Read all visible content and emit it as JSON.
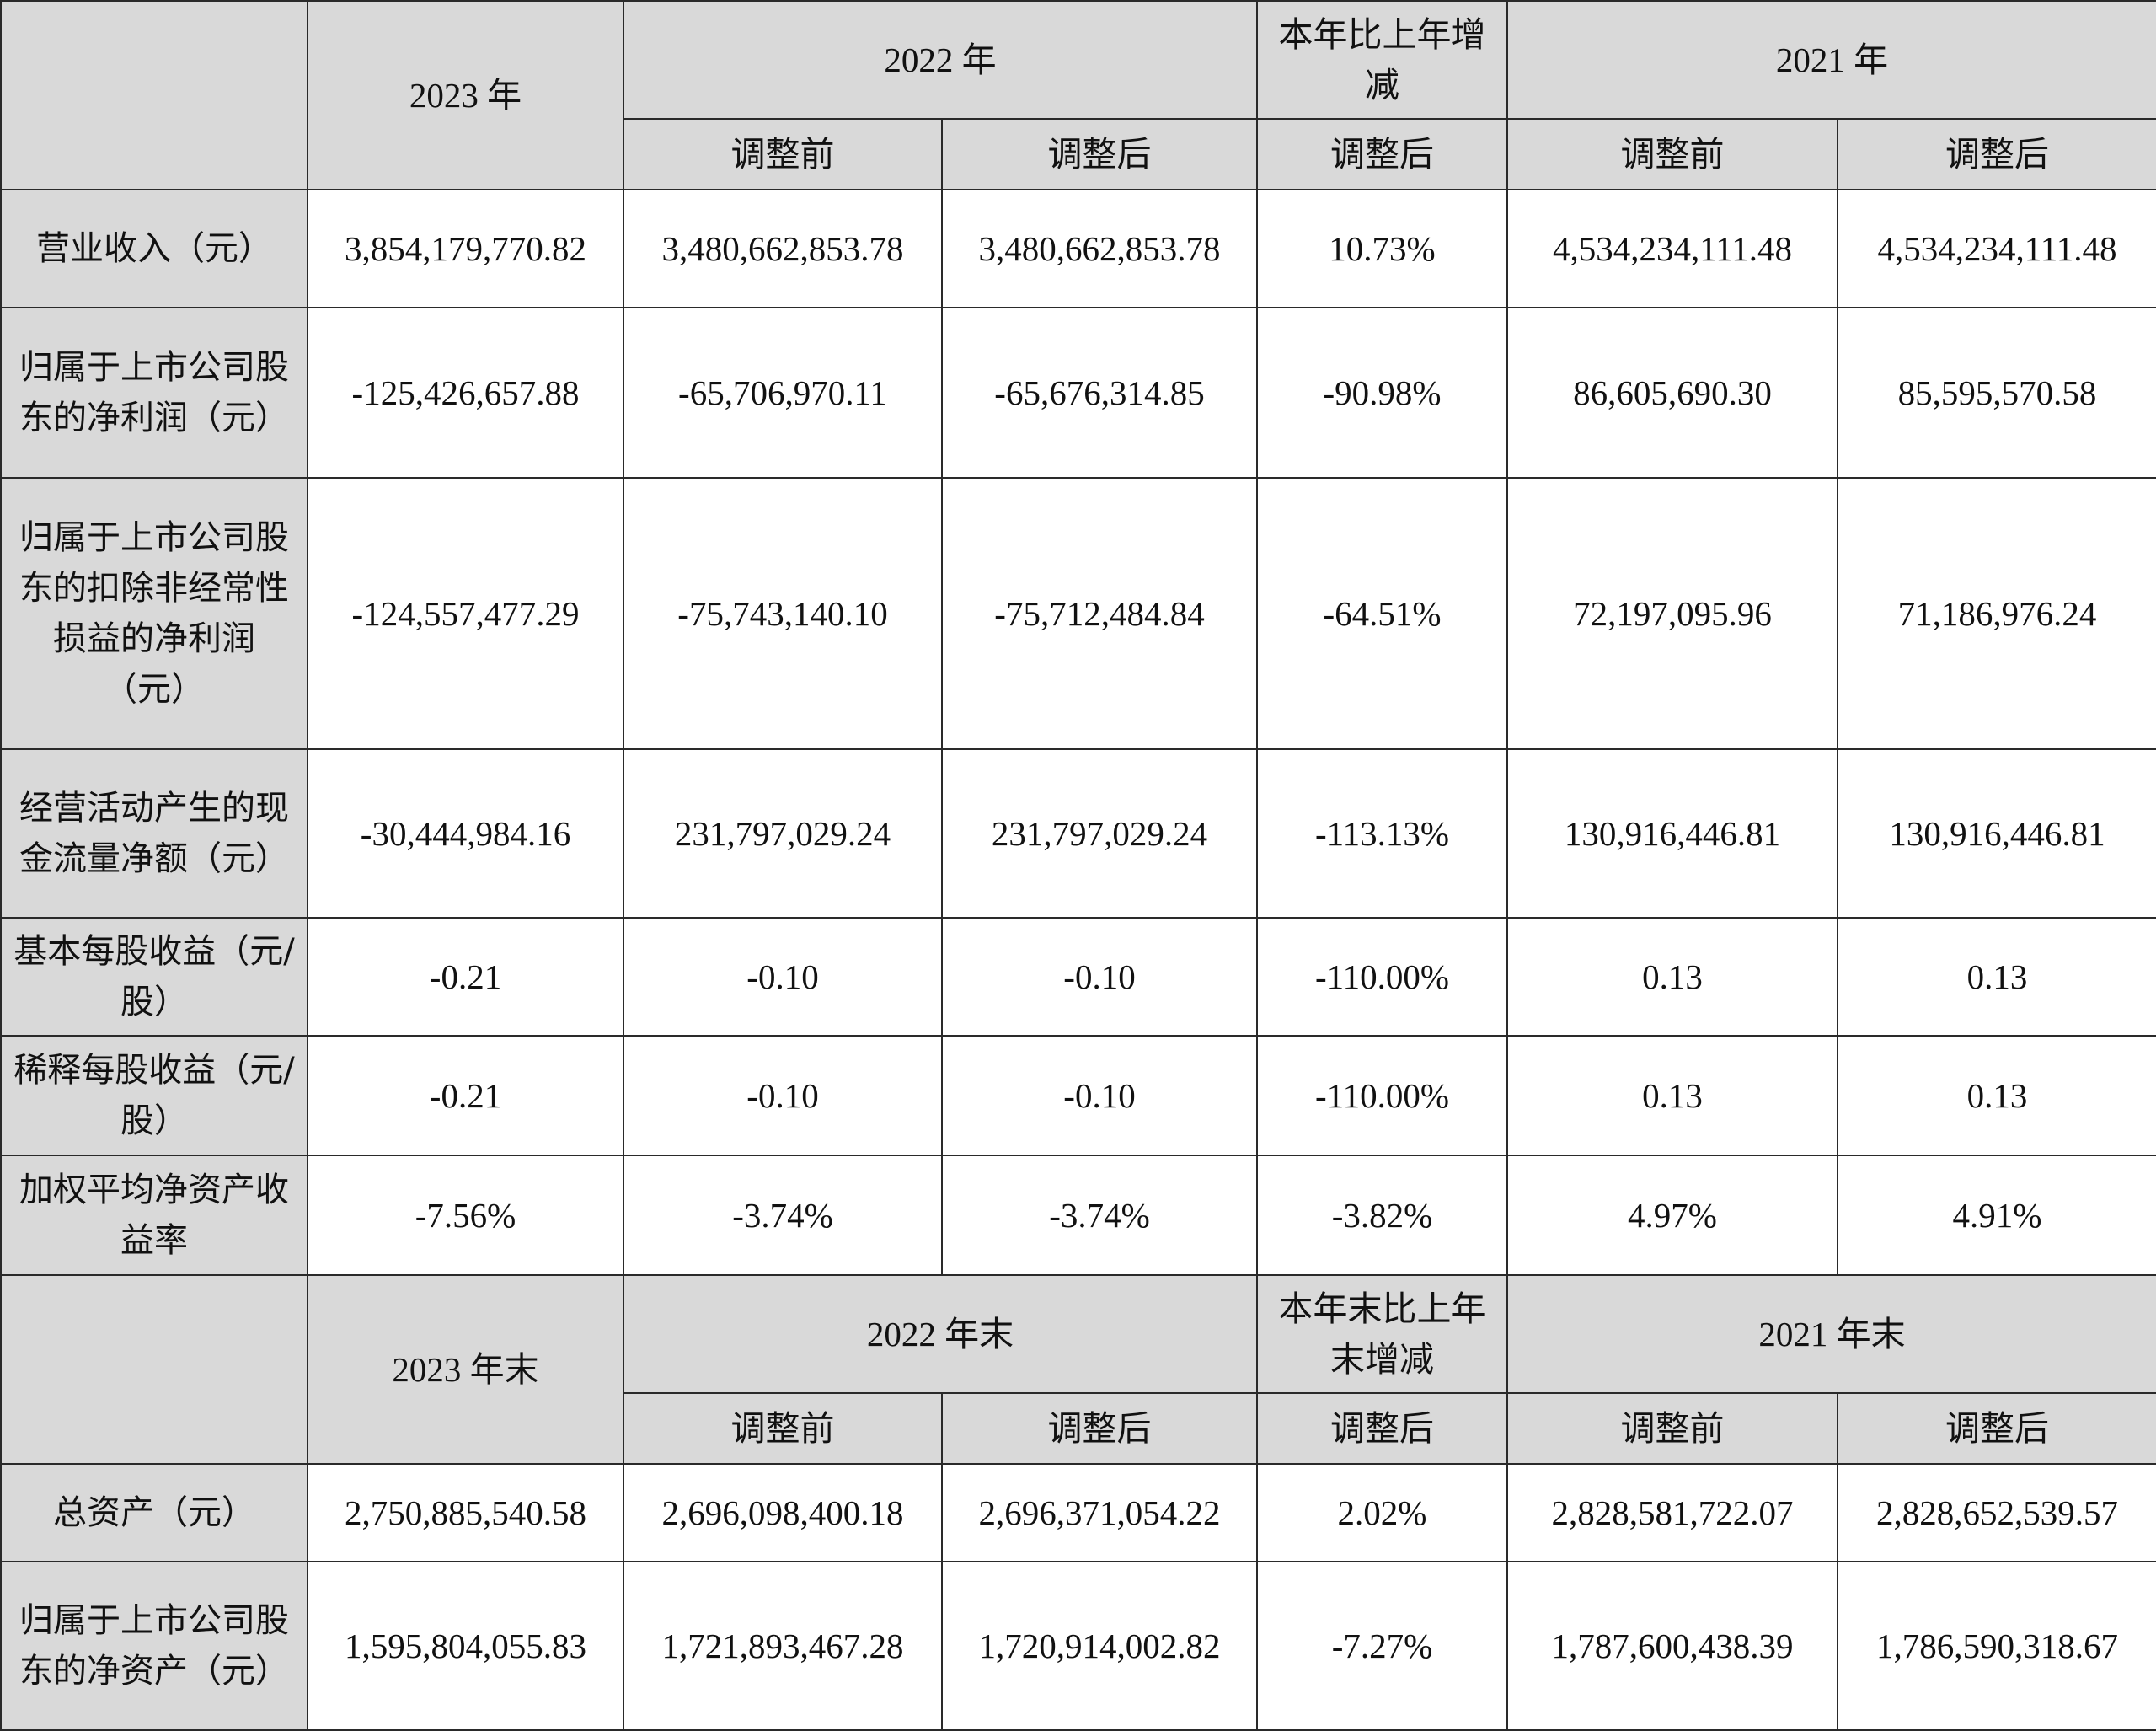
{
  "section1": {
    "header": {
      "year_current": "2023 年",
      "year_prior": "2022 年",
      "change": "本年比上年增减",
      "year_prior2": "2021 年",
      "sub": {
        "prior_before": "调整前",
        "prior_after": "调整后",
        "change_after": "调整后",
        "prior2_before": "调整前",
        "prior2_after": "调整后"
      }
    },
    "rows": [
      {
        "label": "营业收入（元）",
        "values": [
          "3,854,179,770.82",
          "3,480,662,853.78",
          "3,480,662,853.78",
          "10.73%",
          "4,534,234,111.48",
          "4,534,234,111.48"
        ]
      },
      {
        "label": "归属于上市公司股东的净利润（元）",
        "values": [
          "-125,426,657.88",
          "-65,706,970.11",
          "-65,676,314.85",
          "-90.98%",
          "86,605,690.30",
          "85,595,570.58"
        ]
      },
      {
        "label": "归属于上市公司股东的扣除非经常性损益的净利润（元）",
        "values": [
          "-124,557,477.29",
          "-75,743,140.10",
          "-75,712,484.84",
          "-64.51%",
          "72,197,095.96",
          "71,186,976.24"
        ]
      },
      {
        "label": "经营活动产生的现金流量净额（元）",
        "values": [
          "-30,444,984.16",
          "231,797,029.24",
          "231,797,029.24",
          "-113.13%",
          "130,916,446.81",
          "130,916,446.81"
        ]
      },
      {
        "label": "基本每股收益（元/股）",
        "values": [
          "-0.21",
          "-0.10",
          "-0.10",
          "-110.00%",
          "0.13",
          "0.13"
        ]
      },
      {
        "label": "稀释每股收益（元/股）",
        "values": [
          "-0.21",
          "-0.10",
          "-0.10",
          "-110.00%",
          "0.13",
          "0.13"
        ]
      },
      {
        "label": "加权平均净资产收益率",
        "values": [
          "-7.56%",
          "-3.74%",
          "-3.74%",
          "-3.82%",
          "4.97%",
          "4.91%"
        ]
      }
    ]
  },
  "section2": {
    "header": {
      "year_current": "2023 年末",
      "year_prior": "2022 年末",
      "change": "本年末比上年末增减",
      "year_prior2": "2021 年末",
      "sub": {
        "prior_before": "调整前",
        "prior_after": "调整后",
        "change_after": "调整后",
        "prior2_before": "调整前",
        "prior2_after": "调整后"
      }
    },
    "rows": [
      {
        "label": "总资产（元）",
        "values": [
          "2,750,885,540.58",
          "2,696,098,400.18",
          "2,696,371,054.22",
          "2.02%",
          "2,828,581,722.07",
          "2,828,652,539.57"
        ]
      },
      {
        "label": "归属于上市公司股东的净资产（元）",
        "values": [
          "1,595,804,055.83",
          "1,721,893,467.28",
          "1,720,914,002.82",
          "-7.27%",
          "1,787,600,438.39",
          "1,786,590,318.67"
        ]
      }
    ]
  }
}
